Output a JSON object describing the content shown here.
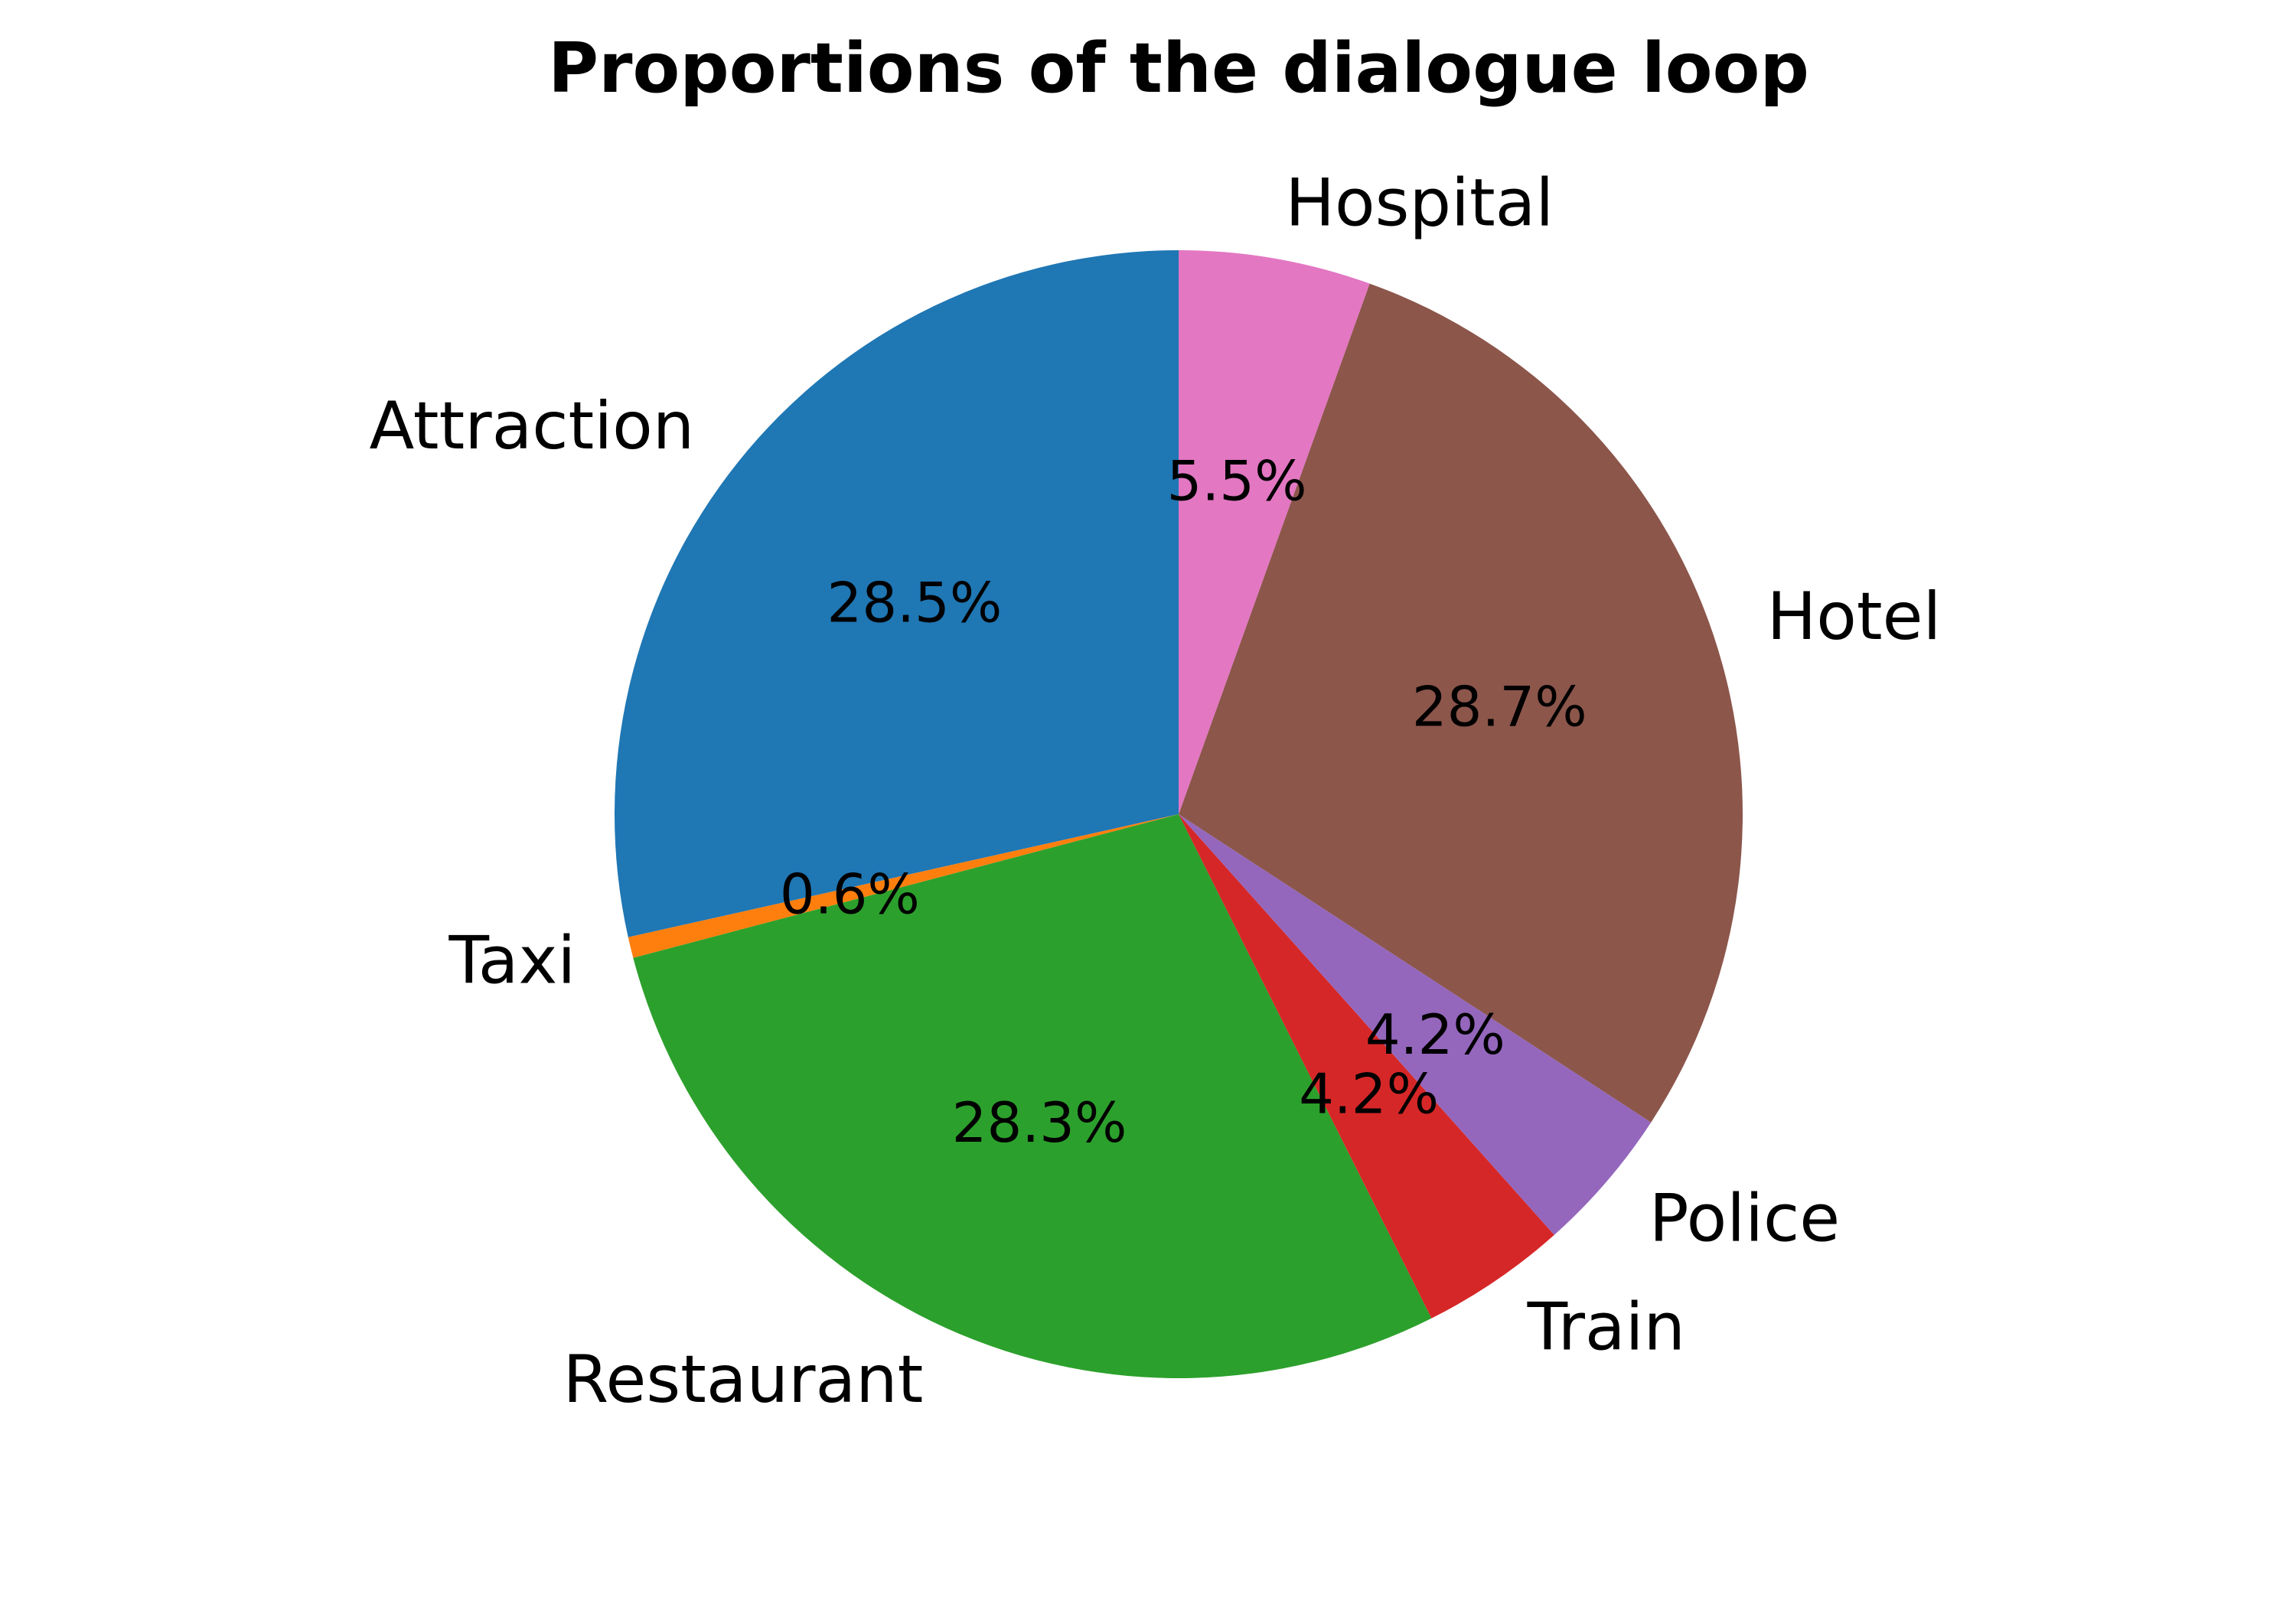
{
  "chart_data": {
    "type": "pie",
    "title": "Proportions of the dialogue loop",
    "categories": [
      "Attraction",
      "Taxi",
      "Restaurant",
      "Train",
      "Police",
      "Hotel",
      "Hospital"
    ],
    "values": [
      28.5,
      0.6,
      28.3,
      4.2,
      4.2,
      28.7,
      5.5
    ],
    "percent_labels": [
      "28.5%",
      "0.6%",
      "28.3%",
      "4.2%",
      "4.2%",
      "28.7%",
      "5.5%"
    ],
    "colors": [
      "#1f77b4",
      "#ff7f0e",
      "#2ca02c",
      "#d62728",
      "#9467bd",
      "#8c564b",
      "#e377c2"
    ],
    "start_angle_deg": 90,
    "direction": "counterclockwise",
    "legend": "none"
  }
}
